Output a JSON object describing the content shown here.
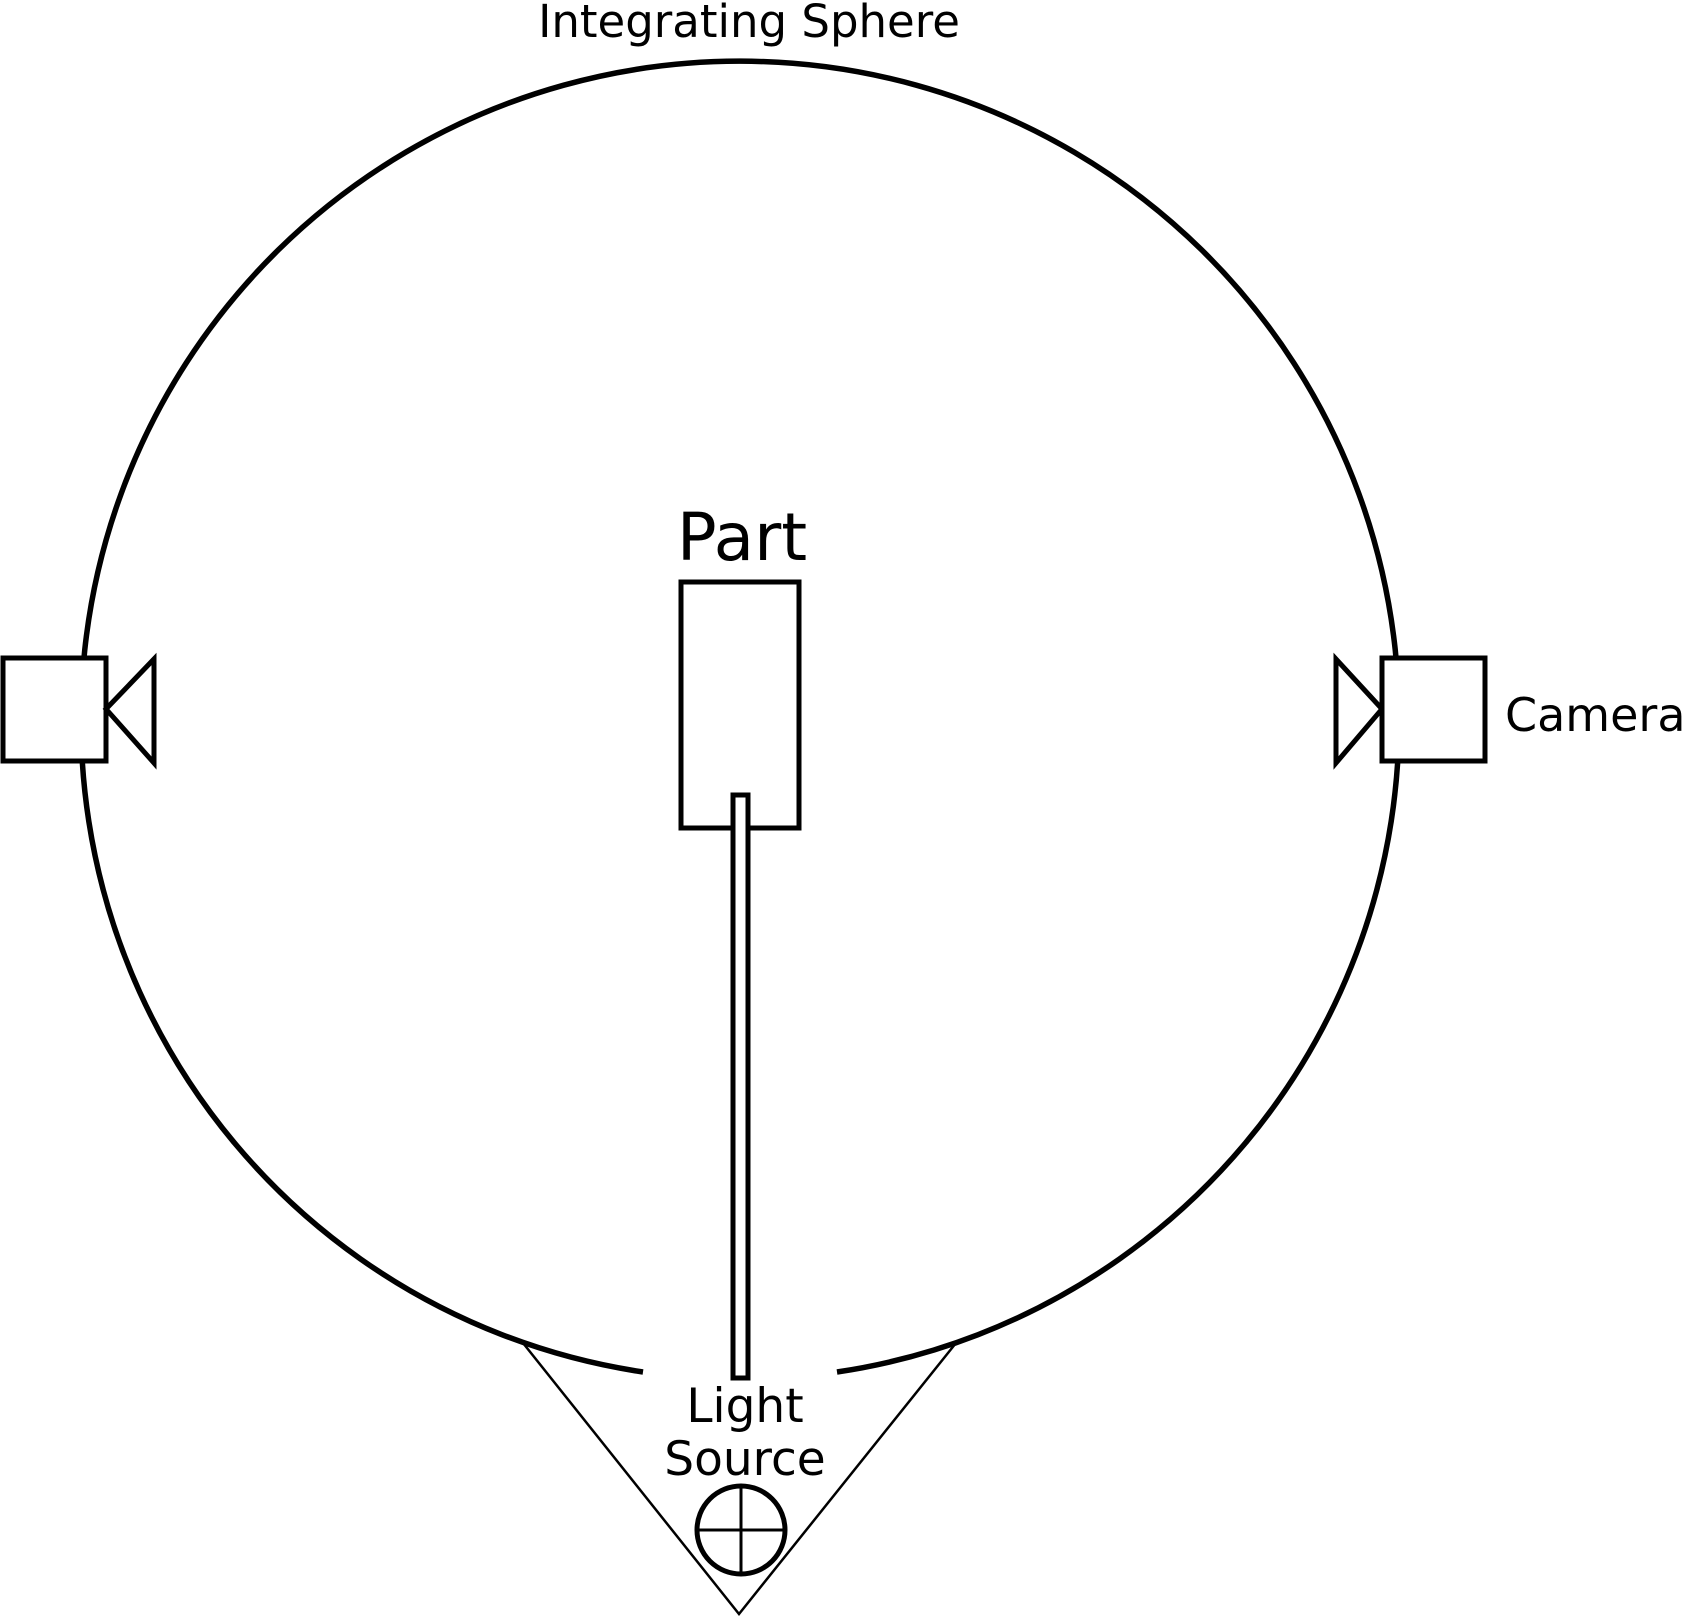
{
  "labels": {
    "sphere": "Integrating Sphere",
    "part": "Part",
    "camera": "Camera",
    "light_source_line1": "Light",
    "light_source_line2": "Source"
  },
  "colors": {
    "stroke": "#000000",
    "background": "#ffffff"
  },
  "icons": {
    "left_camera": "camera-icon",
    "right_camera": "camera-icon",
    "light_source": "lamp-icon"
  }
}
